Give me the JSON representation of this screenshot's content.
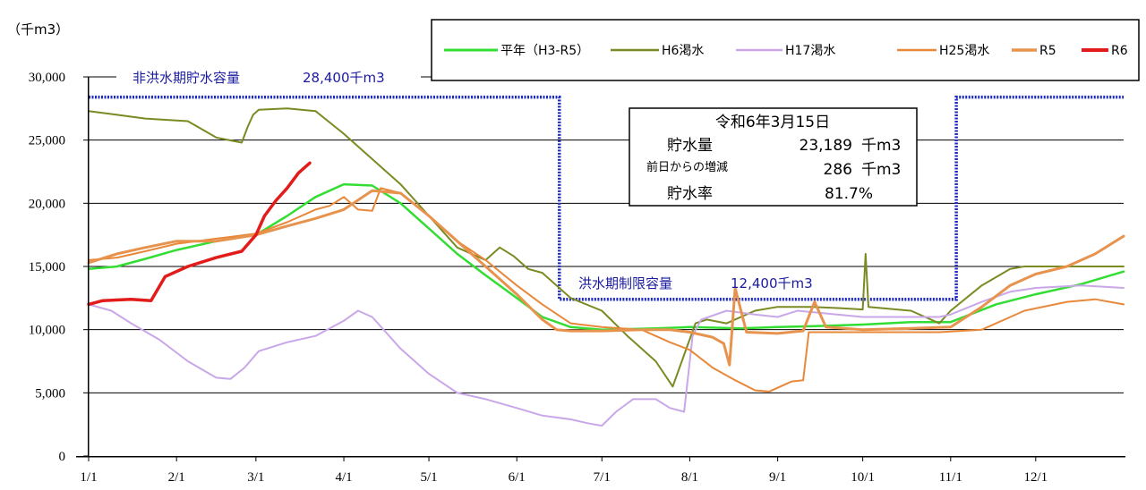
{
  "chart_data": {
    "type": "line",
    "y_unit_label": "（千m3）",
    "ylim": [
      0,
      30000
    ],
    "yticks": [
      "0",
      "5,000",
      "10,000",
      "15,000",
      "20,000",
      "25,000",
      "30,000"
    ],
    "ytick_values": [
      0,
      5000,
      10000,
      15000,
      20000,
      25000,
      30000
    ],
    "xlim": [
      0,
      365
    ],
    "xticks": [
      "1/1",
      "2/1",
      "3/1",
      "4/1",
      "5/1",
      "6/1",
      "7/1",
      "8/1",
      "9/1",
      "10/1",
      "11/1",
      "12/1"
    ],
    "xtick_days": [
      0,
      31,
      59,
      90,
      120,
      151,
      181,
      212,
      243,
      273,
      304,
      334
    ],
    "grid": true,
    "legend_position": "top-right",
    "capacity_line": {
      "color": "#1f2bbf",
      "non_flood_label": "非洪水期貯水容量",
      "non_flood_value_label": "28,400千m3",
      "non_flood_value": 28400,
      "flood_label": "洪水期制限容量",
      "flood_value_label": "12,400千m3",
      "flood_value": 12400,
      "flood_start_day": 166,
      "flood_end_day": 306
    },
    "info_box": {
      "date": "令和6年3月15日",
      "storage_label": "貯水量",
      "storage_value": "23,189",
      "storage_unit": "千m3",
      "change_label": "前日からの増減",
      "change_value": "286",
      "change_unit": "千m3",
      "rate_label": "貯水率",
      "rate_value": "81.7%"
    },
    "series": [
      {
        "name": "平年（H3-R5）",
        "color": "#33dd33",
        "width": 2.5,
        "points": [
          [
            0,
            14800
          ],
          [
            10,
            15000
          ],
          [
            20,
            15600
          ],
          [
            31,
            16300
          ],
          [
            45,
            17000
          ],
          [
            59,
            17500
          ],
          [
            70,
            19000
          ],
          [
            80,
            20500
          ],
          [
            90,
            21500
          ],
          [
            100,
            21400
          ],
          [
            110,
            20000
          ],
          [
            120,
            18000
          ],
          [
            130,
            16000
          ],
          [
            140,
            14300
          ],
          [
            151,
            12500
          ],
          [
            160,
            11000
          ],
          [
            170,
            10200
          ],
          [
            181,
            10000
          ],
          [
            200,
            10100
          ],
          [
            212,
            10200
          ],
          [
            230,
            10100
          ],
          [
            243,
            10200
          ],
          [
            260,
            10300
          ],
          [
            273,
            10400
          ],
          [
            290,
            10600
          ],
          [
            304,
            10600
          ],
          [
            320,
            12000
          ],
          [
            334,
            12800
          ],
          [
            350,
            13600
          ],
          [
            365,
            14600
          ]
        ]
      },
      {
        "name": "H6渇水",
        "color": "#7b8a22",
        "width": 2,
        "points": [
          [
            0,
            27300
          ],
          [
            10,
            27000
          ],
          [
            20,
            26700
          ],
          [
            35,
            26500
          ],
          [
            45,
            25200
          ],
          [
            54,
            24800
          ],
          [
            56,
            26000
          ],
          [
            58,
            27000
          ],
          [
            60,
            27400
          ],
          [
            70,
            27500
          ],
          [
            80,
            27300
          ],
          [
            90,
            25500
          ],
          [
            100,
            23500
          ],
          [
            110,
            21500
          ],
          [
            120,
            19000
          ],
          [
            130,
            16500
          ],
          [
            140,
            15500
          ],
          [
            145,
            16500
          ],
          [
            150,
            15800
          ],
          [
            155,
            14800
          ],
          [
            160,
            14500
          ],
          [
            170,
            12500
          ],
          [
            181,
            11500
          ],
          [
            190,
            9500
          ],
          [
            200,
            7500
          ],
          [
            206,
            5500
          ],
          [
            210,
            8000
          ],
          [
            214,
            10500
          ],
          [
            218,
            10800
          ],
          [
            225,
            10500
          ],
          [
            235,
            11500
          ],
          [
            243,
            11800
          ],
          [
            255,
            11800
          ],
          [
            265,
            11700
          ],
          [
            273,
            11600
          ],
          [
            274,
            16000
          ],
          [
            275,
            11800
          ],
          [
            290,
            11500
          ],
          [
            300,
            10500
          ],
          [
            304,
            11500
          ],
          [
            315,
            13500
          ],
          [
            325,
            14800
          ],
          [
            330,
            15000
          ],
          [
            340,
            15000
          ],
          [
            365,
            15000
          ]
        ]
      },
      {
        "name": "H17渇水",
        "color": "#c9a7e8",
        "width": 2,
        "points": [
          [
            0,
            12000
          ],
          [
            8,
            11500
          ],
          [
            15,
            10500
          ],
          [
            25,
            9200
          ],
          [
            35,
            7500
          ],
          [
            45,
            6200
          ],
          [
            50,
            6100
          ],
          [
            55,
            7000
          ],
          [
            60,
            8300
          ],
          [
            70,
            9000
          ],
          [
            80,
            9500
          ],
          [
            90,
            10700
          ],
          [
            95,
            11500
          ],
          [
            100,
            11000
          ],
          [
            110,
            8500
          ],
          [
            120,
            6500
          ],
          [
            130,
            5000
          ],
          [
            140,
            4500
          ],
          [
            151,
            3800
          ],
          [
            160,
            3200
          ],
          [
            170,
            2900
          ],
          [
            176,
            2600
          ],
          [
            181,
            2400
          ],
          [
            186,
            3500
          ],
          [
            192,
            4500
          ],
          [
            200,
            4500
          ],
          [
            205,
            3800
          ],
          [
            210,
            3500
          ],
          [
            213,
            9500
          ],
          [
            216,
            10800
          ],
          [
            225,
            11500
          ],
          [
            235,
            11200
          ],
          [
            243,
            11000
          ],
          [
            250,
            11500
          ],
          [
            273,
            11000
          ],
          [
            280,
            11000
          ],
          [
            300,
            11000
          ],
          [
            304,
            11200
          ],
          [
            315,
            12200
          ],
          [
            325,
            13000
          ],
          [
            334,
            13300
          ],
          [
            350,
            13500
          ],
          [
            365,
            13300
          ]
        ]
      },
      {
        "name": "H25渇水",
        "color": "#e8883a",
        "width": 2,
        "points": [
          [
            0,
            15500
          ],
          [
            10,
            15700
          ],
          [
            20,
            16200
          ],
          [
            31,
            16800
          ],
          [
            45,
            17200
          ],
          [
            59,
            17600
          ],
          [
            70,
            18500
          ],
          [
            80,
            19500
          ],
          [
            85,
            19800
          ],
          [
            90,
            20500
          ],
          [
            95,
            19500
          ],
          [
            100,
            19400
          ],
          [
            103,
            21200
          ],
          [
            110,
            20800
          ],
          [
            120,
            19000
          ],
          [
            130,
            17000
          ],
          [
            140,
            15500
          ],
          [
            151,
            13500
          ],
          [
            160,
            12000
          ],
          [
            170,
            10500
          ],
          [
            181,
            10200
          ],
          [
            195,
            10000
          ],
          [
            205,
            9000
          ],
          [
            212,
            8400
          ],
          [
            220,
            7000
          ],
          [
            228,
            6000
          ],
          [
            235,
            5200
          ],
          [
            240,
            5100
          ],
          [
            248,
            5900
          ],
          [
            252,
            6000
          ],
          [
            254,
            9800
          ],
          [
            265,
            9800
          ],
          [
            280,
            9800
          ],
          [
            300,
            9800
          ],
          [
            315,
            10000
          ],
          [
            330,
            11500
          ],
          [
            345,
            12200
          ],
          [
            355,
            12400
          ],
          [
            365,
            12000
          ]
        ]
      },
      {
        "name": "R5",
        "color": "#e7934e",
        "width": 3,
        "points": [
          [
            0,
            15300
          ],
          [
            10,
            16000
          ],
          [
            20,
            16500
          ],
          [
            31,
            17000
          ],
          [
            45,
            17000
          ],
          [
            59,
            17500
          ],
          [
            70,
            18200
          ],
          [
            80,
            18800
          ],
          [
            90,
            19500
          ],
          [
            100,
            21000
          ],
          [
            110,
            20800
          ],
          [
            120,
            19000
          ],
          [
            130,
            17000
          ],
          [
            140,
            15000
          ],
          [
            151,
            12800
          ],
          [
            160,
            10800
          ],
          [
            165,
            10000
          ],
          [
            170,
            9900
          ],
          [
            181,
            9900
          ],
          [
            195,
            10000
          ],
          [
            205,
            10000
          ],
          [
            212,
            9800
          ],
          [
            220,
            9400
          ],
          [
            224,
            8900
          ],
          [
            226,
            7200
          ],
          [
            228,
            13300
          ],
          [
            232,
            9800
          ],
          [
            243,
            9700
          ],
          [
            252,
            9900
          ],
          [
            256,
            12200
          ],
          [
            260,
            10200
          ],
          [
            273,
            10000
          ],
          [
            290,
            10100
          ],
          [
            304,
            10200
          ],
          [
            315,
            11800
          ],
          [
            325,
            13500
          ],
          [
            334,
            14400
          ],
          [
            345,
            15000
          ],
          [
            355,
            16000
          ],
          [
            365,
            17400
          ]
        ]
      },
      {
        "name": "R6",
        "color": "#e21b1b",
        "width": 3.5,
        "points": [
          [
            0,
            12000
          ],
          [
            5,
            12300
          ],
          [
            15,
            12400
          ],
          [
            22,
            12300
          ],
          [
            27,
            14200
          ],
          [
            35,
            15000
          ],
          [
            45,
            15700
          ],
          [
            54,
            16200
          ],
          [
            59,
            17500
          ],
          [
            62,
            19000
          ],
          [
            66,
            20200
          ],
          [
            70,
            21200
          ],
          [
            74,
            22400
          ],
          [
            78,
            23189
          ]
        ]
      }
    ]
  }
}
